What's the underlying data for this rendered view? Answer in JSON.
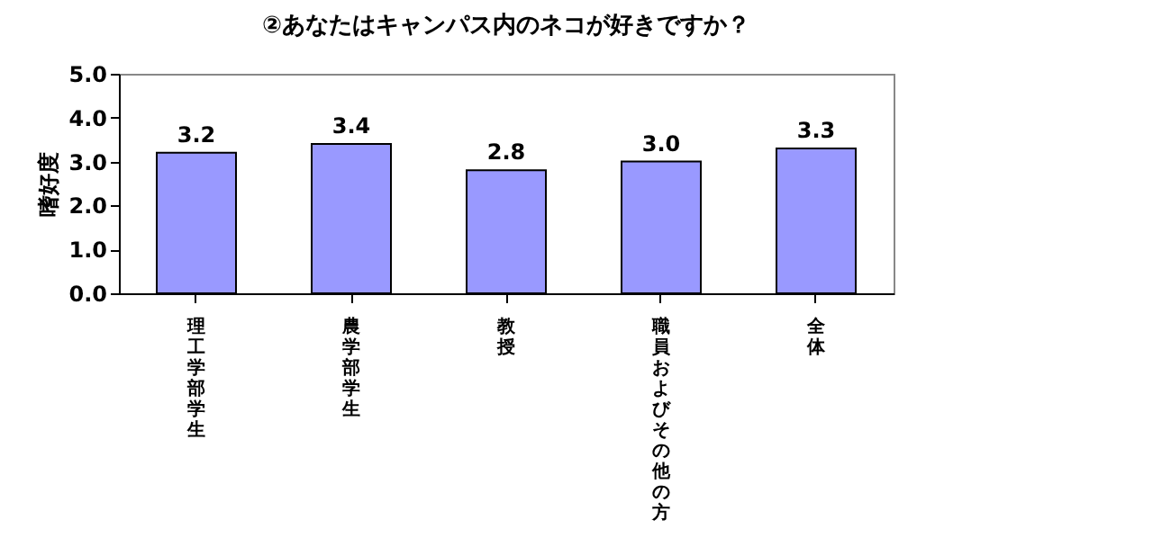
{
  "chart_data": {
    "type": "bar",
    "title": "②あなたはキャンパス内のネコが好きですか？",
    "ylabel": "嗜好度",
    "categories": [
      "理工学部学生",
      "農学部学生",
      "教授",
      "職員およびその他の方",
      "全体"
    ],
    "values": [
      3.2,
      3.4,
      2.8,
      3.0,
      3.3
    ],
    "color": "#9999ff",
    "ylim": [
      0,
      5
    ],
    "yticks": [
      {
        "value": 0,
        "label": "0.0"
      },
      {
        "value": 1,
        "label": "1.0"
      },
      {
        "value": 2,
        "label": "2.0"
      },
      {
        "value": 3,
        "label": "3.0"
      },
      {
        "value": 4,
        "label": "4.0"
      },
      {
        "value": 5,
        "label": "5.0"
      }
    ],
    "value_labels": [
      "3.2",
      "3.4",
      "2.8",
      "3.0",
      "3.3"
    ],
    "grid": false
  }
}
